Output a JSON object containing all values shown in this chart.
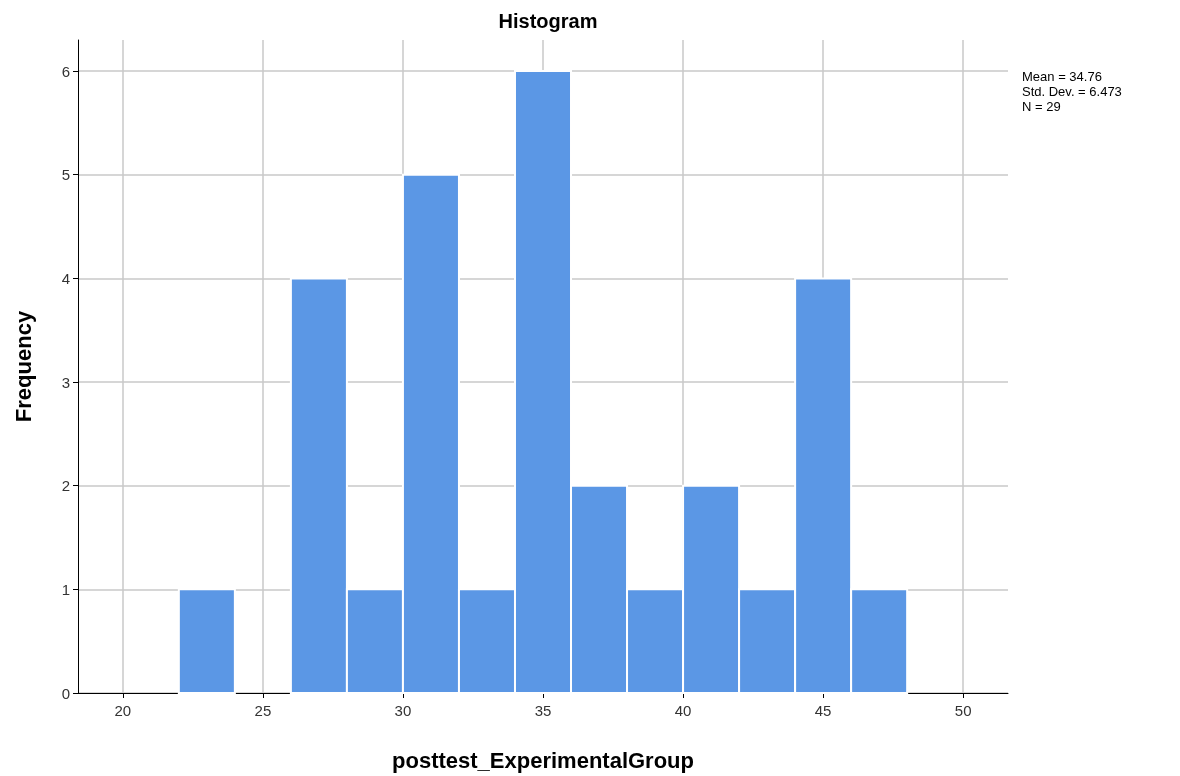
{
  "chart_data": {
    "type": "histogram",
    "title": "Histogram",
    "xlabel": "posttest_ExperimentalGroup",
    "ylabel": "Frequency",
    "bins": [
      22,
      24,
      26,
      28,
      30,
      32,
      34,
      36,
      38,
      40,
      42,
      44,
      46,
      48
    ],
    "values": [
      1,
      0,
      4,
      1,
      5,
      1,
      6,
      2,
      1,
      2,
      1,
      4,
      1
    ],
    "color": "#5b97e5",
    "xlim": [
      18.4,
      51.6
    ],
    "xticks": [
      20,
      25,
      30,
      35,
      40,
      45,
      50
    ],
    "ylim": [
      0,
      6.3
    ],
    "yticks": [
      0,
      1,
      2,
      3,
      4,
      5,
      6
    ],
    "grid": true,
    "annotations": [
      "Mean = 34.76",
      "Std. Dev. = 6.473",
      "N = 29"
    ]
  }
}
